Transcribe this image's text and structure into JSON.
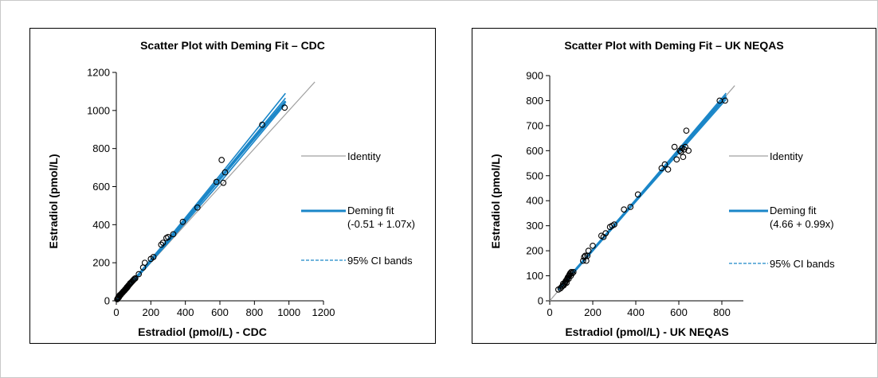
{
  "chart_data": [
    {
      "type": "scatter",
      "title": "Scatter Plot with Deming Fit – CDC",
      "xlabel": "Estradiol (pmol/L) - CDC",
      "ylabel": "Estradiol (pmol/L)",
      "xlim": [
        0,
        1200
      ],
      "ylim": [
        0,
        1200
      ],
      "xticks": [
        0,
        200,
        400,
        600,
        800,
        1000,
        1200
      ],
      "yticks": [
        0,
        200,
        400,
        600,
        800,
        1000,
        1200
      ],
      "grid": false,
      "legend": [
        {
          "label": "Identity"
        },
        {
          "label": "Deming fit",
          "sublabel": "(-0.51 + 1.07x)"
        },
        {
          "label": "95% CI bands"
        }
      ],
      "colors": {
        "identity": "#a0a0a0",
        "fit": "#1a86c8",
        "ci": "#1a86c8",
        "point": "#000000"
      },
      "identity": {
        "intercept": 0,
        "slope": 1,
        "x_range": [
          0,
          1150
        ]
      },
      "deming_fit": {
        "intercept": -0.51,
        "slope": 1.07,
        "x_range": [
          0,
          980
        ]
      },
      "ci_bands": [
        {
          "points": [
            [
              0,
              0
            ],
            [
              300,
              305
            ],
            [
              600,
              620
            ],
            [
              980,
              1035
            ]
          ]
        },
        {
          "points": [
            [
              0,
              0
            ],
            [
              300,
              325
            ],
            [
              600,
              660
            ],
            [
              980,
              1090
            ]
          ]
        },
        {
          "points": [
            [
              0,
              0
            ],
            [
              300,
              320
            ],
            [
              600,
              648
            ],
            [
              980,
              1065
            ]
          ]
        },
        {
          "points": [
            [
              0,
              0
            ],
            [
              300,
              310
            ],
            [
              600,
              635
            ],
            [
              980,
              1050
            ]
          ]
        }
      ],
      "points": [
        [
          5,
          8
        ],
        [
          8,
          12
        ],
        [
          10,
          15
        ],
        [
          12,
          20
        ],
        [
          15,
          18
        ],
        [
          18,
          25
        ],
        [
          20,
          30
        ],
        [
          22,
          28
        ],
        [
          25,
          32
        ],
        [
          28,
          35
        ],
        [
          30,
          38
        ],
        [
          32,
          40
        ],
        [
          35,
          42
        ],
        [
          38,
          45
        ],
        [
          40,
          48
        ],
        [
          42,
          50
        ],
        [
          45,
          52
        ],
        [
          48,
          55
        ],
        [
          50,
          58
        ],
        [
          52,
          60
        ],
        [
          55,
          62
        ],
        [
          58,
          65
        ],
        [
          60,
          70
        ],
        [
          65,
          72
        ],
        [
          68,
          78
        ],
        [
          70,
          80
        ],
        [
          75,
          85
        ],
        [
          78,
          88
        ],
        [
          80,
          92
        ],
        [
          85,
          95
        ],
        [
          90,
          100
        ],
        [
          95,
          105
        ],
        [
          100,
          110
        ],
        [
          105,
          115
        ],
        [
          110,
          118
        ],
        [
          130,
          140
        ],
        [
          155,
          175
        ],
        [
          165,
          200
        ],
        [
          200,
          220
        ],
        [
          215,
          230
        ],
        [
          260,
          295
        ],
        [
          270,
          305
        ],
        [
          290,
          330
        ],
        [
          300,
          335
        ],
        [
          330,
          350
        ],
        [
          385,
          415
        ],
        [
          470,
          490
        ],
        [
          580,
          625
        ],
        [
          610,
          740
        ],
        [
          620,
          620
        ],
        [
          630,
          675
        ],
        [
          845,
          925
        ],
        [
          975,
          1015
        ]
      ]
    },
    {
      "type": "scatter",
      "title": "Scatter Plot with Deming Fit – UK NEQAS",
      "xlabel": "Estradiol (pmol/L) - UK NEQAS",
      "ylabel": "Estradiol (pmol/L)",
      "xlim": [
        0,
        900
      ],
      "ylim": [
        0,
        900
      ],
      "xticks": [
        0,
        200,
        400,
        600,
        800
      ],
      "yticks": [
        0,
        100,
        200,
        300,
        400,
        500,
        600,
        700,
        800,
        900
      ],
      "grid": false,
      "legend": [
        {
          "label": "Identity"
        },
        {
          "label": "Deming fit",
          "sublabel": "(4.66 + 0.99x)"
        },
        {
          "label": "95% CI bands"
        }
      ],
      "colors": {
        "identity": "#a0a0a0",
        "fit": "#1a86c8",
        "ci": "#1a86c8",
        "point": "#000000"
      },
      "identity": {
        "intercept": 0,
        "slope": 1,
        "x_range": [
          0,
          860
        ]
      },
      "deming_fit": {
        "intercept": 4.66,
        "slope": 0.99,
        "x_range": [
          40,
          820
        ]
      },
      "ci_bands": [
        {
          "points": [
            [
              40,
              42
            ],
            [
              400,
              396
            ],
            [
              820,
              805
            ]
          ]
        },
        {
          "points": [
            [
              40,
              48
            ],
            [
              400,
              405
            ],
            [
              820,
              830
            ]
          ]
        },
        {
          "points": [
            [
              40,
              45
            ],
            [
              400,
              398
            ],
            [
              820,
              815
            ]
          ]
        },
        {
          "points": [
            [
              40,
              47
            ],
            [
              400,
              403
            ],
            [
              820,
              822
            ]
          ]
        }
      ],
      "points": [
        [
          40,
          45
        ],
        [
          50,
          50
        ],
        [
          55,
          55
        ],
        [
          60,
          60
        ],
        [
          62,
          68
        ],
        [
          65,
          62
        ],
        [
          70,
          70
        ],
        [
          72,
          75
        ],
        [
          75,
          80
        ],
        [
          78,
          72
        ],
        [
          80,
          85
        ],
        [
          82,
          90
        ],
        [
          85,
          95
        ],
        [
          88,
          88
        ],
        [
          90,
          100
        ],
        [
          92,
          105
        ],
        [
          95,
          110
        ],
        [
          98,
          100
        ],
        [
          100,
          115
        ],
        [
          105,
          110
        ],
        [
          110,
          115
        ],
        [
          155,
          160
        ],
        [
          160,
          175
        ],
        [
          165,
          180
        ],
        [
          170,
          160
        ],
        [
          175,
          180
        ],
        [
          180,
          200
        ],
        [
          200,
          220
        ],
        [
          240,
          260
        ],
        [
          250,
          255
        ],
        [
          260,
          270
        ],
        [
          280,
          295
        ],
        [
          290,
          300
        ],
        [
          300,
          305
        ],
        [
          345,
          365
        ],
        [
          375,
          375
        ],
        [
          410,
          425
        ],
        [
          520,
          530
        ],
        [
          535,
          545
        ],
        [
          550,
          525
        ],
        [
          580,
          615
        ],
        [
          590,
          565
        ],
        [
          605,
          600
        ],
        [
          610,
          595
        ],
        [
          615,
          610
        ],
        [
          620,
          575
        ],
        [
          625,
          605
        ],
        [
          630,
          615
        ],
        [
          635,
          680
        ],
        [
          645,
          600
        ],
        [
          790,
          800
        ],
        [
          815,
          800
        ]
      ]
    }
  ]
}
